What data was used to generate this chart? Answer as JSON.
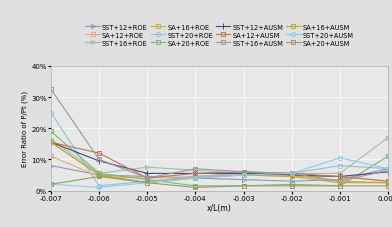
{
  "x": [
    -0.007,
    -0.006,
    -0.005,
    -0.004,
    -0.003,
    -0.002,
    -0.001,
    0.0
  ],
  "series": [
    {
      "label": "SST+12+ROE",
      "color": "#8899BB",
      "marker": ">",
      "markersize": 3,
      "linestyle": "-",
      "values": [
        8.0,
        5.0,
        4.5,
        4.0,
        3.5,
        3.0,
        3.5,
        7.0
      ]
    },
    {
      "label": "SA+12+ROE",
      "color": "#E8A87C",
      "marker": "s",
      "markersize": 3,
      "linestyle": "-",
      "values": [
        11.0,
        4.5,
        4.0,
        4.5,
        5.0,
        4.5,
        4.5,
        3.0
      ]
    },
    {
      "label": "SST+16+ROE",
      "color": "#AABBAA",
      "marker": ">",
      "markersize": 3,
      "linestyle": "-",
      "values": [
        16.5,
        5.5,
        7.5,
        6.5,
        5.5,
        5.5,
        5.5,
        17.0
      ]
    },
    {
      "label": "SA+16+ROE",
      "color": "#CCAA44",
      "marker": "s",
      "markersize": 3,
      "linestyle": "-",
      "values": [
        15.5,
        5.0,
        2.5,
        4.5,
        5.5,
        5.0,
        3.0,
        2.5
      ]
    },
    {
      "label": "SST+20+ROE",
      "color": "#99BBDD",
      "marker": "o",
      "markersize": 3,
      "linestyle": "-",
      "values": [
        25.0,
        1.5,
        3.0,
        4.5,
        5.5,
        5.5,
        8.0,
        7.0
      ]
    },
    {
      "label": "SA+20+ROE",
      "color": "#77BB77",
      "marker": "s",
      "markersize": 3,
      "linestyle": "-",
      "values": [
        19.0,
        5.5,
        3.5,
        1.5,
        1.5,
        2.0,
        1.5,
        11.0
      ]
    },
    {
      "label": "SST+12+AUSM",
      "color": "#444488",
      "marker": "+",
      "markersize": 4,
      "linestyle": "-",
      "values": [
        15.5,
        9.5,
        5.5,
        5.5,
        5.5,
        5.0,
        4.5,
        6.0
      ]
    },
    {
      "label": "SA+12+AUSM",
      "color": "#BB7755",
      "marker": "s",
      "markersize": 3,
      "linestyle": "-",
      "values": [
        15.5,
        12.0,
        4.0,
        5.5,
        6.0,
        5.5,
        4.5,
        3.0
      ]
    },
    {
      "label": "SST+16+AUSM",
      "color": "#999999",
      "marker": "s",
      "markersize": 3,
      "linestyle": "-",
      "values": [
        32.5,
        10.0,
        4.0,
        7.0,
        6.0,
        5.5,
        3.0,
        6.5
      ]
    },
    {
      "label": "SA+16+AUSM",
      "color": "#BBAA33",
      "marker": "s",
      "markersize": 3,
      "linestyle": "-",
      "values": [
        15.5,
        5.0,
        2.5,
        4.0,
        5.0,
        4.5,
        2.5,
        2.5
      ]
    },
    {
      "label": "SST+20+AUSM",
      "color": "#88CCEE",
      "marker": "o",
      "markersize": 3,
      "linestyle": "-",
      "values": [
        2.0,
        1.0,
        2.5,
        4.0,
        5.0,
        5.5,
        10.5,
        7.0
      ]
    },
    {
      "label": "SA+20+AUSM",
      "color": "#999966",
      "marker": "s",
      "markersize": 3,
      "linestyle": "-",
      "values": [
        2.0,
        4.5,
        2.5,
        1.0,
        1.5,
        1.5,
        1.5,
        1.5
      ]
    }
  ],
  "xlabel": "x/L(m)",
  "ylabel": "Error Ratio of P/Pt (%)",
  "ylim_pct": [
    0,
    40
  ],
  "xlim": [
    -0.007,
    0.0
  ],
  "ytick_vals": [
    0,
    10,
    20,
    30,
    40
  ],
  "ytick_labels": [
    "0%",
    "10%",
    "20%",
    "30%",
    "40%"
  ],
  "xticks": [
    -0.007,
    -0.006,
    -0.005,
    -0.004,
    -0.003,
    -0.002,
    -0.001,
    0.0
  ],
  "fig_facecolor": "#E0E0E0",
  "plot_facecolor": "#E8E8E8"
}
